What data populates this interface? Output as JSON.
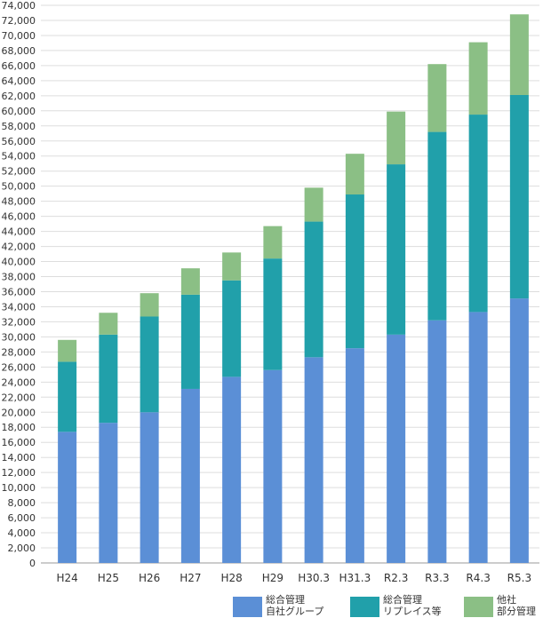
{
  "chart_data": {
    "type": "bar",
    "stacked": true,
    "categories": [
      "H24",
      "H25",
      "H26",
      "H27",
      "H28",
      "H29",
      "H30.3",
      "H31.3",
      "R2.3",
      "R3.3",
      "R4.3",
      "R5.3"
    ],
    "series": [
      {
        "name": [
          "総合管理",
          "自社グループ"
        ],
        "color": "#5b8fd6",
        "values": [
          17400,
          18600,
          20000,
          23100,
          24700,
          25600,
          27300,
          28500,
          30300,
          32200,
          33300,
          35100
        ]
      },
      {
        "name": [
          "総合管理",
          "リプレイス等"
        ],
        "color": "#21a0aa",
        "values": [
          9300,
          11700,
          12700,
          12500,
          12800,
          14800,
          18000,
          20400,
          22600,
          25000,
          26200,
          27000
        ]
      },
      {
        "name": [
          "他社",
          "部分管理"
        ],
        "color": "#8bbf85",
        "values": [
          2900,
          2900,
          3100,
          3500,
          3700,
          4300,
          4500,
          5400,
          7000,
          9000,
          9600,
          10700
        ]
      }
    ],
    "ylim": [
      0,
      74000
    ],
    "ytick_step": 2000,
    "ytick_labels": [
      "0",
      "2,000",
      "4,000",
      "6,000",
      "8,000",
      "10,000",
      "12,000",
      "14,000",
      "16,000",
      "18,000",
      "20,000",
      "22,000",
      "24,000",
      "26,000",
      "28,000",
      "30,000",
      "32,000",
      "34,000",
      "36,000",
      "38,000",
      "40,000",
      "42,000",
      "44,000",
      "46,000",
      "48,000",
      "50,000",
      "52,000",
      "54,000",
      "56,000",
      "58,000",
      "60,000",
      "62,000",
      "64,000",
      "66,000",
      "68,000",
      "70,000",
      "72,000",
      "74,000"
    ],
    "grid": true,
    "legend": "bottom-right",
    "title": "",
    "xlabel": "",
    "ylabel": ""
  }
}
